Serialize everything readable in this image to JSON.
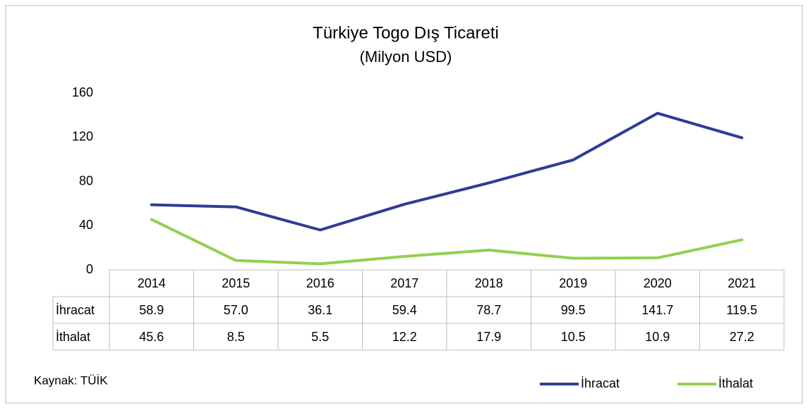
{
  "chart_data": {
    "type": "line",
    "title": "Türkiye Togo Dış Ticareti",
    "subtitle": "(Milyon USD)",
    "categories": [
      "2014",
      "2015",
      "2016",
      "2017",
      "2018",
      "2019",
      "2020",
      "2021"
    ],
    "series": [
      {
        "name": "İhracat",
        "color": "#2e3c96",
        "values": [
          58.9,
          57.0,
          36.1,
          59.4,
          78.7,
          99.5,
          141.7,
          119.5
        ],
        "value_labels": [
          "58.9",
          "57.0",
          "36.1",
          "59.4",
          "78.7",
          "99.5",
          "141.7",
          "119.5"
        ]
      },
      {
        "name": "İthalat",
        "color": "#92d050",
        "values": [
          45.6,
          8.5,
          5.5,
          12.2,
          17.9,
          10.5,
          10.9,
          27.2
        ],
        "value_labels": [
          "45.6",
          "8.5",
          "5.5",
          "12.2",
          "17.9",
          "10.5",
          "10.9",
          "27.2"
        ]
      }
    ],
    "ylim": [
      0,
      160
    ],
    "yticks": [
      0,
      40,
      80,
      120,
      160
    ],
    "grid": false,
    "legend": "bottom-right",
    "source": "Kaynak: TÜİK"
  }
}
